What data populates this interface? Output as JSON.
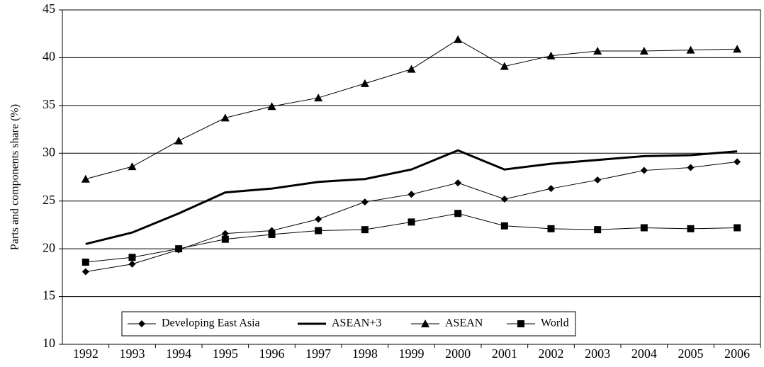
{
  "chart_data": {
    "type": "line",
    "y_label": "Parts and components share (%)",
    "categories": [
      "1992",
      "1993",
      "1994",
      "1995",
      "1996",
      "1997",
      "1998",
      "1999",
      "2000",
      "2001",
      "2002",
      "2003",
      "2004",
      "2005",
      "2006"
    ],
    "series": [
      {
        "name": "Developing East Asia",
        "color": "#000000",
        "marker": "diamond",
        "width": 1,
        "values": [
          17.6,
          18.4,
          19.9,
          21.6,
          21.9,
          23.1,
          24.9,
          25.7,
          26.9,
          25.2,
          26.3,
          27.2,
          28.2,
          28.5,
          29.1
        ]
      },
      {
        "name": "ASEAN+3",
        "color": "#000000",
        "marker": "none",
        "width": 3,
        "values": [
          20.5,
          21.7,
          23.7,
          25.9,
          26.3,
          27.0,
          27.3,
          28.3,
          30.3,
          28.3,
          28.9,
          29.3,
          29.7,
          29.8,
          30.2
        ]
      },
      {
        "name": "ASEAN",
        "color": "#000000",
        "marker": "triangle",
        "width": 1,
        "values": [
          27.3,
          28.6,
          31.3,
          33.7,
          34.9,
          35.8,
          37.3,
          38.8,
          41.9,
          39.1,
          40.2,
          40.7,
          40.7,
          40.8,
          40.9
        ]
      },
      {
        "name": "World",
        "color": "#000000",
        "marker": "square",
        "width": 1,
        "values": [
          18.6,
          19.1,
          20.0,
          21.0,
          21.5,
          21.9,
          22.0,
          22.8,
          23.7,
          22.4,
          22.1,
          22.0,
          22.2,
          22.1,
          22.2
        ]
      }
    ],
    "ylim": [
      10,
      45
    ],
    "yticks": [
      10,
      15,
      20,
      25,
      30,
      35,
      40,
      45
    ],
    "grid": true
  }
}
